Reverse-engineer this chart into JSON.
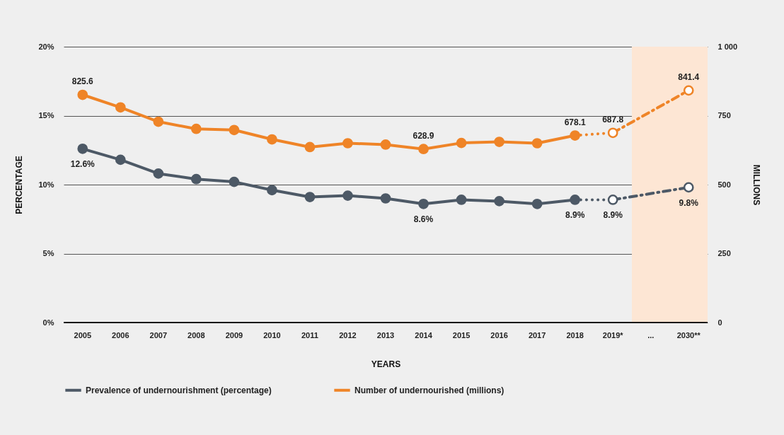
{
  "chart_data": {
    "type": "line",
    "categories": [
      "2005",
      "2006",
      "2007",
      "2008",
      "2009",
      "2010",
      "2011",
      "2012",
      "2013",
      "2014",
      "2015",
      "2016",
      "2017",
      "2018",
      "2019*",
      "...",
      "2030**"
    ],
    "series": [
      {
        "name": "Prevalence of undernourishment (percentage)",
        "color": "#4d5966",
        "line_style": "solid",
        "marker": "circle",
        "values": [
          12.6,
          11.8,
          10.8,
          10.4,
          10.2,
          9.6,
          9.1,
          9.2,
          9.0,
          8.6,
          8.9,
          8.8,
          8.6,
          8.9,
          null,
          null,
          null
        ],
        "value_labels": [
          "12.6%",
          null,
          null,
          null,
          null,
          null,
          null,
          null,
          null,
          "8.6%",
          null,
          null,
          null,
          "8.9%",
          null,
          null,
          null
        ]
      },
      {
        "color": "#4d5966",
        "line_style": "dotted",
        "values": [
          null,
          null,
          null,
          null,
          null,
          null,
          null,
          null,
          null,
          null,
          null,
          null,
          null,
          8.9,
          8.9,
          null,
          null
        ]
      },
      {
        "color": "#4d5966",
        "line_style": "dashed",
        "marker": "circle",
        "values": [
          null,
          null,
          null,
          null,
          null,
          null,
          null,
          null,
          null,
          null,
          null,
          null,
          null,
          null,
          8.9,
          null,
          9.8
        ],
        "value_labels": [
          null,
          null,
          null,
          null,
          null,
          null,
          null,
          null,
          null,
          null,
          null,
          null,
          null,
          null,
          "8.9%",
          null,
          "9.8%"
        ]
      },
      {
        "name": "Number of undernourished (millions)",
        "color": "#ef8427",
        "axis": "y2",
        "line_style": "solid",
        "marker": "circle",
        "values": [
          825.6,
          780,
          728,
          702,
          698,
          664,
          636,
          650,
          645,
          628.9,
          651,
          655,
          650,
          678.1,
          null,
          null,
          null
        ],
        "value_labels": [
          "825.6",
          null,
          null,
          null,
          null,
          null,
          null,
          null,
          null,
          "628.9",
          null,
          null,
          null,
          "678.1",
          null,
          null,
          null
        ]
      },
      {
        "color": "#ef8427",
        "axis": "y2",
        "line_style": "dotted",
        "values": [
          null,
          null,
          null,
          null,
          null,
          null,
          null,
          null,
          null,
          null,
          null,
          null,
          null,
          678.1,
          687.8,
          null,
          null
        ]
      },
      {
        "color": "#ef8427",
        "axis": "y2",
        "line_style": "dashed",
        "marker": "circle",
        "values": [
          null,
          null,
          null,
          null,
          null,
          null,
          null,
          null,
          null,
          null,
          null,
          null,
          null,
          null,
          687.8,
          null,
          841.4
        ],
        "value_labels": [
          null,
          null,
          null,
          null,
          null,
          null,
          null,
          null,
          null,
          null,
          null,
          null,
          null,
          null,
          "687.8",
          null,
          "841.4"
        ]
      }
    ],
    "xlabel": "YEARS",
    "ylabel": "PERCENTAGE",
    "y2label": "MILLIONS",
    "ylim": [
      0,
      20
    ],
    "yticks": [
      {
        "value": 0,
        "label": "0%"
      },
      {
        "value": 5,
        "label": "5%"
      },
      {
        "value": 10,
        "label": "10%"
      },
      {
        "value": 15,
        "label": "15%"
      },
      {
        "value": 20,
        "label": "20%"
      }
    ],
    "y2lim": [
      0,
      1000
    ],
    "y2ticks": [
      0,
      250,
      500,
      750,
      {
        "value": 1000,
        "label": "1 000"
      }
    ],
    "bands": [
      {
        "axis": "x",
        "from": "...",
        "to": "2030**",
        "color": "#fde6d4"
      }
    ],
    "grid": "y",
    "legend": "bottom"
  }
}
